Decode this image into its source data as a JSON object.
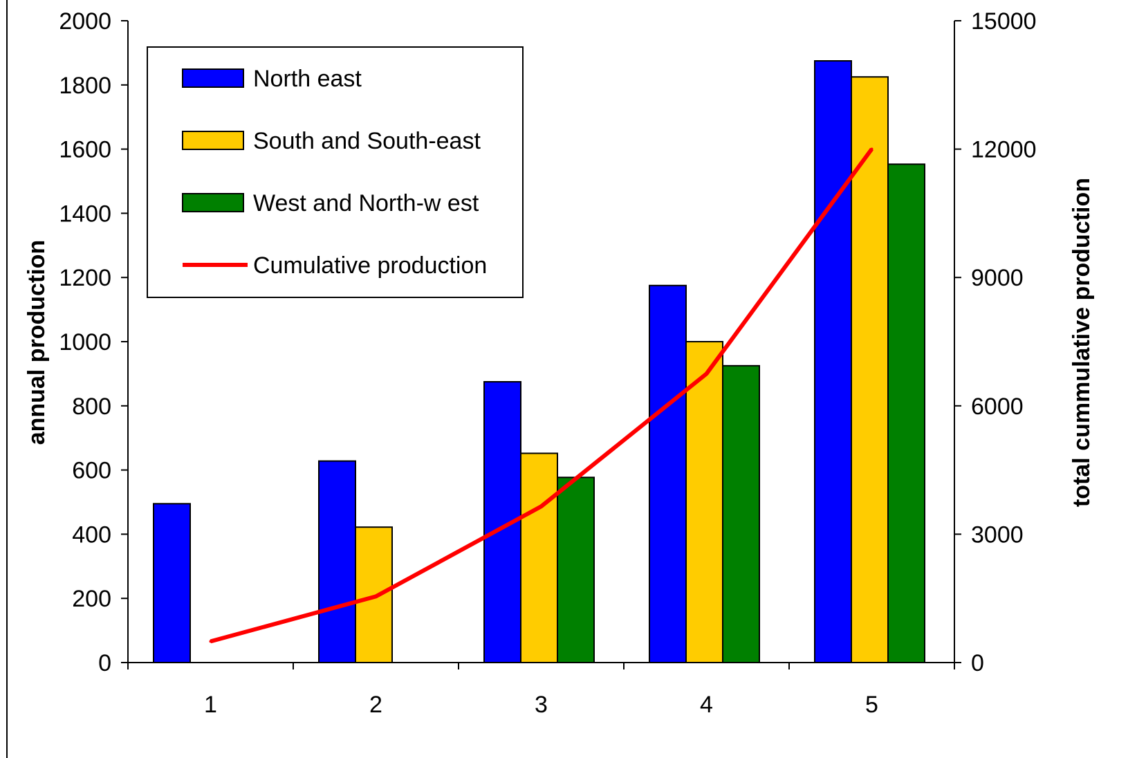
{
  "chart_data": {
    "type": "bar",
    "categories": [
      "1",
      "2",
      "3",
      "4",
      "5"
    ],
    "series": [
      {
        "name": "North east",
        "type": "bar",
        "axis": "left",
        "color": "#0000ff",
        "values": [
          495,
          628,
          875,
          1175,
          1875
        ]
      },
      {
        "name": "South and South-east",
        "type": "bar",
        "axis": "left",
        "color": "#ffcc00",
        "values": [
          null,
          422,
          652,
          1000,
          1825
        ]
      },
      {
        "name": "West and North-w est",
        "type": "bar",
        "axis": "left",
        "color": "#008000",
        "values": [
          null,
          null,
          577,
          925,
          1553
        ]
      },
      {
        "name": "Cumulative production",
        "type": "line",
        "axis": "right",
        "color": "#ff0000",
        "values": [
          495,
          1545,
          3649,
          6749,
          12002
        ]
      }
    ],
    "ylabel": "annual production",
    "y2label": "total cummulative production",
    "ylim": [
      0,
      2000
    ],
    "yticks": [
      0,
      200,
      400,
      600,
      800,
      1000,
      1200,
      1400,
      1600,
      1800,
      2000
    ],
    "y2lim": [
      0,
      15000
    ],
    "y2ticks": [
      0,
      3000,
      6000,
      9000,
      12000,
      15000
    ],
    "grid": false,
    "legend": "top-left"
  }
}
